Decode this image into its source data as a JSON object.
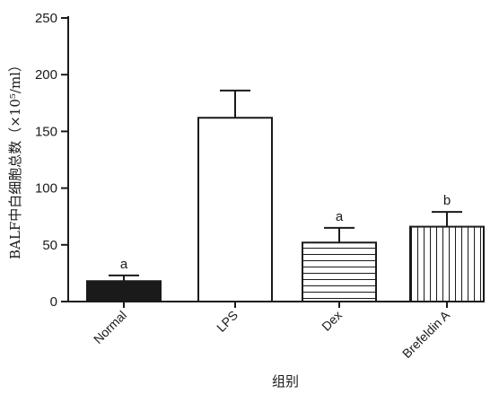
{
  "chart_data": {
    "type": "bar",
    "title": "",
    "xlabel": "组别",
    "ylabel": "BALF中白细胞总数（×10⁵/ml）",
    "ylim": [
      0,
      250
    ],
    "yticks": [
      0,
      50,
      100,
      150,
      200,
      250
    ],
    "grid": false,
    "categories": [
      "Normal",
      "LPS",
      "Dex",
      "Brefeldin A"
    ],
    "values": [
      18,
      162,
      52,
      66
    ],
    "errors": [
      5,
      24,
      13,
      13
    ],
    "significance": [
      "a",
      "",
      "a",
      "b"
    ],
    "fills": [
      "solid-black",
      "white",
      "horizontal-lines",
      "vertical-lines"
    ]
  },
  "colors": {
    "ink": "#1a1a1a",
    "background": "#ffffff"
  }
}
